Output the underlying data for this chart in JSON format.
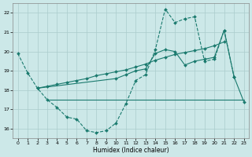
{
  "xlabel": "Humidex (Indice chaleur)",
  "background_color": "#cce8e8",
  "grid_color": "#aacccc",
  "line_color": "#1a7a6e",
  "xlim": [
    -0.5,
    23.5
  ],
  "ylim": [
    15.5,
    22.5
  ],
  "yticks": [
    16,
    17,
    18,
    19,
    20,
    21,
    22
  ],
  "xticks": [
    0,
    1,
    2,
    3,
    4,
    5,
    6,
    7,
    8,
    9,
    10,
    11,
    12,
    13,
    14,
    15,
    16,
    17,
    18,
    19,
    20,
    21,
    22,
    23
  ],
  "series": [
    {
      "x": [
        0,
        1,
        2,
        3,
        4,
        5,
        6,
        7,
        8,
        9,
        10,
        11,
        12,
        13,
        14,
        15,
        16,
        17,
        18,
        19,
        20,
        21,
        22
      ],
      "y": [
        19.9,
        18.9,
        18.1,
        17.5,
        17.1,
        16.6,
        16.5,
        15.9,
        15.8,
        15.9,
        16.3,
        17.3,
        18.5,
        18.8,
        20.1,
        22.2,
        21.5,
        21.7,
        21.8,
        19.5,
        19.6,
        21.1,
        18.7
      ],
      "dashed": true,
      "marker": "D",
      "markersize": 2.0
    },
    {
      "x": [
        2,
        10,
        11,
        12,
        13,
        14,
        15,
        16,
        17,
        18,
        19,
        20,
        21,
        22,
        23
      ],
      "y": [
        18.1,
        18.6,
        18.8,
        19.0,
        19.1,
        19.9,
        20.1,
        20.0,
        19.3,
        19.5,
        19.6,
        19.7,
        21.1,
        18.7,
        17.4
      ],
      "dashed": false,
      "marker": "D",
      "markersize": 2.0
    },
    {
      "x": [
        3,
        23
      ],
      "y": [
        17.5,
        17.5
      ],
      "dashed": false,
      "marker": null,
      "markersize": 0
    },
    {
      "x": [
        2,
        3,
        4,
        5,
        6,
        7,
        8,
        9,
        10,
        11,
        12,
        13,
        14,
        15,
        16,
        17,
        18,
        19,
        20,
        21
      ],
      "y": [
        18.1,
        18.2,
        18.3,
        18.4,
        18.5,
        18.6,
        18.75,
        18.85,
        18.95,
        19.05,
        19.2,
        19.35,
        19.55,
        19.7,
        19.85,
        19.95,
        20.05,
        20.15,
        20.3,
        20.5
      ],
      "dashed": false,
      "marker": "D",
      "markersize": 2.0
    }
  ]
}
